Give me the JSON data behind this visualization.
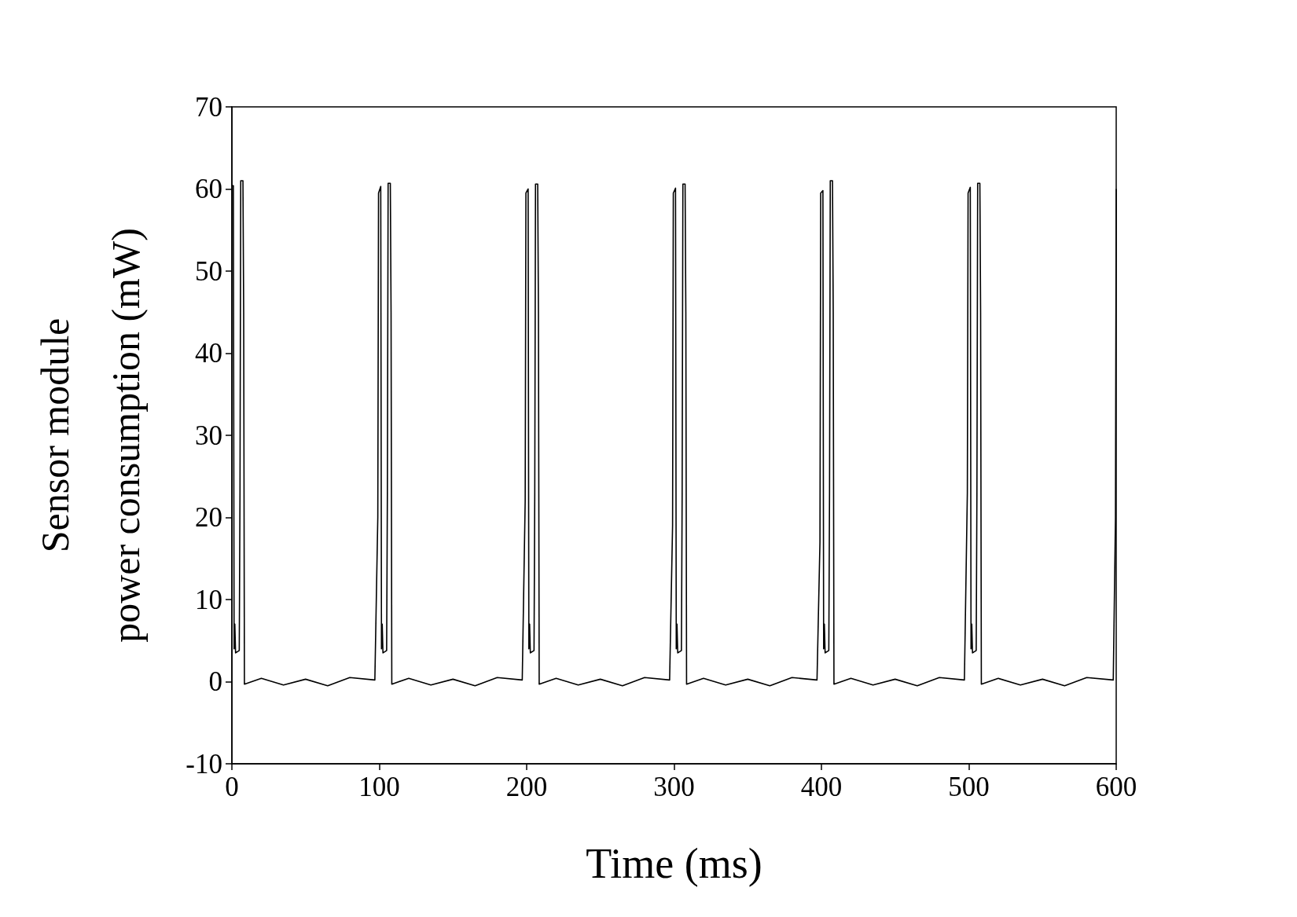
{
  "chart_data": {
    "type": "line",
    "xlabel": "Time (ms)",
    "ylabel": "Sensor module\npower consumption (mW)",
    "color": "#000000",
    "grid": false,
    "x": [
      0,
      1,
      1.5,
      2,
      2.5,
      5,
      5.5,
      6,
      7.5,
      8,
      8.5,
      20,
      35,
      50,
      65,
      80,
      97,
      99,
      99.5,
      101,
      101.5,
      102,
      102.5,
      105,
      105.5,
      106,
      107.5,
      108,
      108.5,
      120,
      135,
      150,
      165,
      180,
      197,
      199,
      199.5,
      201,
      201.5,
      202,
      202.5,
      205,
      205.5,
      206,
      207.5,
      208,
      208.5,
      220,
      235,
      250,
      265,
      280,
      297,
      299,
      299.5,
      301,
      301.5,
      302,
      302.5,
      305,
      305.5,
      306,
      307.5,
      308,
      308.5,
      320,
      335,
      350,
      365,
      380,
      397,
      399,
      399.5,
      401,
      401.5,
      402,
      402.5,
      405,
      405.5,
      406,
      407.5,
      408,
      408.5,
      420,
      435,
      450,
      465,
      480,
      497,
      499,
      499.5,
      501,
      501.5,
      502,
      502.5,
      505,
      505.5,
      506,
      507.5,
      508,
      508.5,
      520,
      535,
      550,
      565,
      580,
      598,
      599.5,
      600
    ],
    "values": [
      60.4,
      60.4,
      4,
      7,
      3.5,
      3.8,
      23,
      61,
      61,
      45,
      -0.3,
      0.4,
      -0.4,
      0.3,
      -0.5,
      0.5,
      0.2,
      20,
      59.5,
      60.3,
      4,
      7,
      3.5,
      3.8,
      23,
      60.7,
      60.7,
      45,
      -0.3,
      0.4,
      -0.4,
      0.3,
      -0.5,
      0.5,
      0.2,
      22,
      59.5,
      60,
      4,
      7,
      3.5,
      3.8,
      23,
      60.6,
      60.6,
      45,
      -0.3,
      0.4,
      -0.4,
      0.3,
      -0.5,
      0.5,
      0.2,
      19,
      59.5,
      60.1,
      4,
      7,
      3.5,
      3.8,
      23,
      60.6,
      60.6,
      45,
      -0.3,
      0.4,
      -0.4,
      0.3,
      -0.5,
      0.5,
      0.2,
      17,
      59.5,
      59.8,
      4,
      7,
      3.5,
      3.8,
      23,
      61,
      61,
      45,
      -0.3,
      0.4,
      -0.4,
      0.3,
      -0.5,
      0.5,
      0.2,
      23,
      59.5,
      60.2,
      4,
      7,
      3.5,
      3.8,
      23,
      60.7,
      60.7,
      45,
      -0.3,
      0.4,
      -0.4,
      0.3,
      -0.5,
      0.5,
      0.2,
      20,
      60
    ],
    "xlim": [
      0,
      600
    ],
    "xticks": [
      0,
      100,
      200,
      300,
      400,
      500,
      600
    ],
    "ylim": [
      -10,
      70
    ],
    "yticks": [
      -10,
      0,
      10,
      20,
      30,
      40,
      50,
      60,
      70
    ]
  }
}
